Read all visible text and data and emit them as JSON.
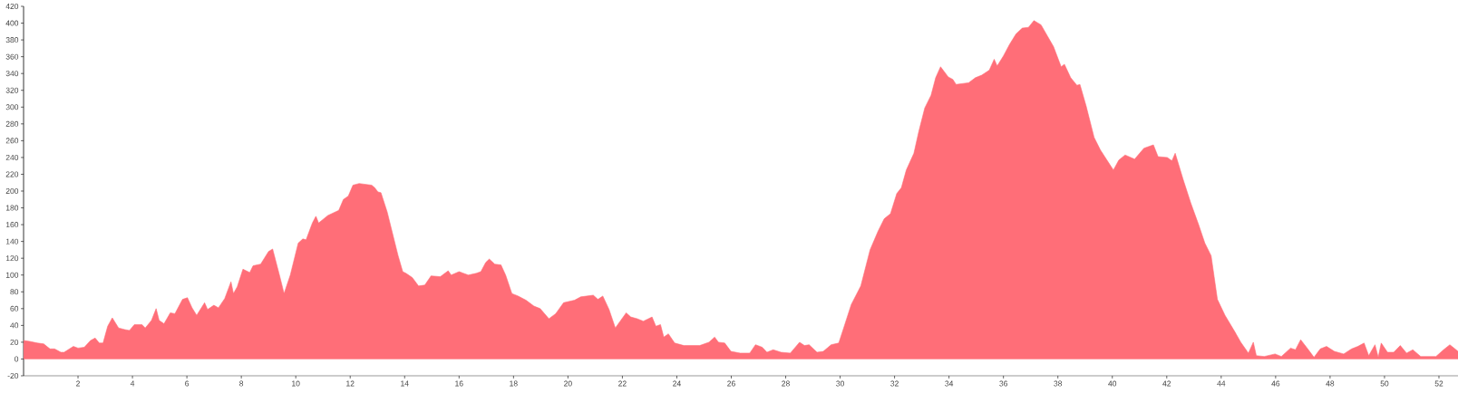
{
  "chart_data": {
    "type": "area",
    "color": "#ff6e78",
    "x": [
      0,
      0.22,
      0.51,
      0.74,
      0.97,
      1.14,
      1.37,
      1.49,
      1.83,
      2.0,
      2.23,
      2.46,
      2.63,
      2.78,
      2.92,
      3.09,
      3.26,
      3.49,
      3.72,
      3.89,
      4.07,
      4.35,
      4.47,
      4.7,
      4.87,
      4.98,
      5.16,
      5.39,
      5.56,
      5.84,
      6.02,
      6.19,
      6.36,
      6.65,
      6.76,
      6.99,
      7.16,
      7.39,
      7.62,
      7.71,
      7.85,
      8.06,
      8.31,
      8.43,
      8.71,
      9.0,
      9.15,
      9.4,
      9.57,
      9.8,
      10.09,
      10.26,
      10.38,
      10.61,
      10.74,
      10.84,
      11.18,
      11.58,
      11.75,
      11.93,
      12.1,
      12.33,
      12.79,
      12.9,
      13.02,
      13.13,
      13.36,
      13.59,
      13.76,
      13.93,
      14.05,
      14.28,
      14.51,
      14.74,
      14.97,
      15.31,
      15.6,
      15.71,
      16.0,
      16.34,
      16.63,
      16.8,
      16.98,
      17.11,
      17.31,
      17.54,
      17.71,
      17.94,
      18.17,
      18.46,
      18.75,
      18.98,
      19.3,
      19.55,
      19.84,
      20.24,
      20.47,
      20.93,
      21.1,
      21.28,
      21.51,
      21.74,
      22.14,
      22.31,
      22.54,
      22.77,
      23.09,
      23.23,
      23.4,
      23.52,
      23.69,
      23.92,
      24.26,
      24.84,
      25.18,
      25.39,
      25.53,
      25.76,
      25.99,
      26.33,
      26.68,
      26.89,
      27.14,
      27.31,
      27.54,
      27.83,
      28.17,
      28.51,
      28.69,
      28.86,
      29.15,
      29.38,
      29.67,
      29.95,
      30.13,
      30.41,
      30.76,
      31.1,
      31.39,
      31.62,
      31.85,
      32.08,
      32.25,
      32.43,
      32.71,
      32.89,
      33.11,
      33.34,
      33.51,
      33.69,
      33.97,
      34.14,
      34.26,
      34.72,
      34.97,
      35.2,
      35.48,
      35.66,
      35.77,
      36.0,
      36.23,
      36.46,
      36.69,
      36.92,
      37.12,
      37.38,
      37.61,
      37.84,
      38.12,
      38.24,
      38.47,
      38.7,
      38.81,
      39.04,
      39.33,
      39.56,
      39.78,
      40.04,
      40.24,
      40.47,
      40.82,
      41.16,
      41.51,
      41.68,
      42.02,
      42.19,
      42.31,
      42.6,
      42.88,
      43.17,
      43.4,
      43.63,
      43.86,
      44.14,
      44.49,
      44.72,
      45.0,
      45.18,
      45.29,
      45.58,
      45.98,
      46.21,
      46.55,
      46.73,
      46.92,
      47.18,
      47.41,
      47.64,
      47.87,
      48.16,
      48.5,
      48.79,
      49.02,
      49.25,
      49.42,
      49.65,
      49.77,
      49.88,
      50.11,
      50.34,
      50.58,
      50.81,
      51.04,
      51.33,
      51.89,
      52.17,
      52.4,
      52.63,
      52.7
    ],
    "values": [
      22,
      21,
      19,
      18,
      12,
      12,
      8,
      8,
      15,
      13,
      14,
      22,
      25,
      19,
      19,
      39,
      49,
      37,
      35,
      34,
      41,
      41,
      37,
      46,
      60,
      46,
      42,
      55,
      54,
      71,
      73,
      61,
      52,
      67,
      59,
      64,
      61,
      72,
      92,
      78,
      86,
      107,
      103,
      111,
      113,
      128,
      131,
      100,
      78,
      100,
      138,
      143,
      142,
      162,
      170,
      162,
      171,
      177,
      190,
      194,
      207,
      209,
      207,
      204,
      199,
      198,
      175,
      145,
      123,
      104,
      102,
      97,
      87,
      88,
      99,
      98,
      105,
      100,
      104,
      100,
      102,
      104,
      115,
      119,
      113,
      112,
      100,
      78,
      75,
      70,
      63,
      60,
      48,
      54,
      67,
      70,
      74,
      76,
      71,
      75,
      59,
      37,
      55,
      50,
      48,
      45,
      50,
      39,
      41,
      26,
      30,
      19,
      16,
      16,
      20,
      26,
      20,
      19,
      9,
      7,
      7,
      17,
      14,
      8,
      11,
      8,
      7,
      20,
      16,
      17,
      8,
      9,
      17,
      19,
      37,
      65,
      87,
      130,
      152,
      167,
      173,
      197,
      204,
      225,
      245,
      271,
      299,
      314,
      335,
      348,
      336,
      333,
      327,
      329,
      335,
      338,
      344,
      357,
      349,
      361,
      375,
      387,
      394,
      395,
      403,
      398,
      385,
      372,
      348,
      351,
      335,
      326,
      327,
      301,
      264,
      249,
      238,
      225,
      237,
      243,
      238,
      251,
      255,
      241,
      240,
      236,
      245,
      214,
      186,
      160,
      138,
      123,
      71,
      52,
      33,
      20,
      7,
      20,
      4,
      3,
      6,
      3,
      13,
      11,
      23,
      12,
      2,
      12,
      15,
      9,
      6,
      12,
      15,
      19,
      4,
      17,
      2,
      19,
      8,
      8,
      16,
      7,
      11,
      3,
      3,
      11,
      17,
      11,
      9
    ],
    "xlim": [
      0,
      52.7
    ],
    "ylim": [
      -20,
      420
    ],
    "xticks": [
      2,
      4,
      6,
      8,
      10,
      12,
      14,
      16,
      18,
      20,
      22,
      24,
      26,
      28,
      30,
      32,
      34,
      36,
      38,
      40,
      42,
      44,
      46,
      48,
      50,
      52
    ],
    "yticks": [
      -20,
      0,
      20,
      40,
      60,
      80,
      100,
      120,
      140,
      160,
      180,
      200,
      220,
      240,
      260,
      280,
      300,
      320,
      340,
      360,
      380,
      400,
      420
    ]
  }
}
